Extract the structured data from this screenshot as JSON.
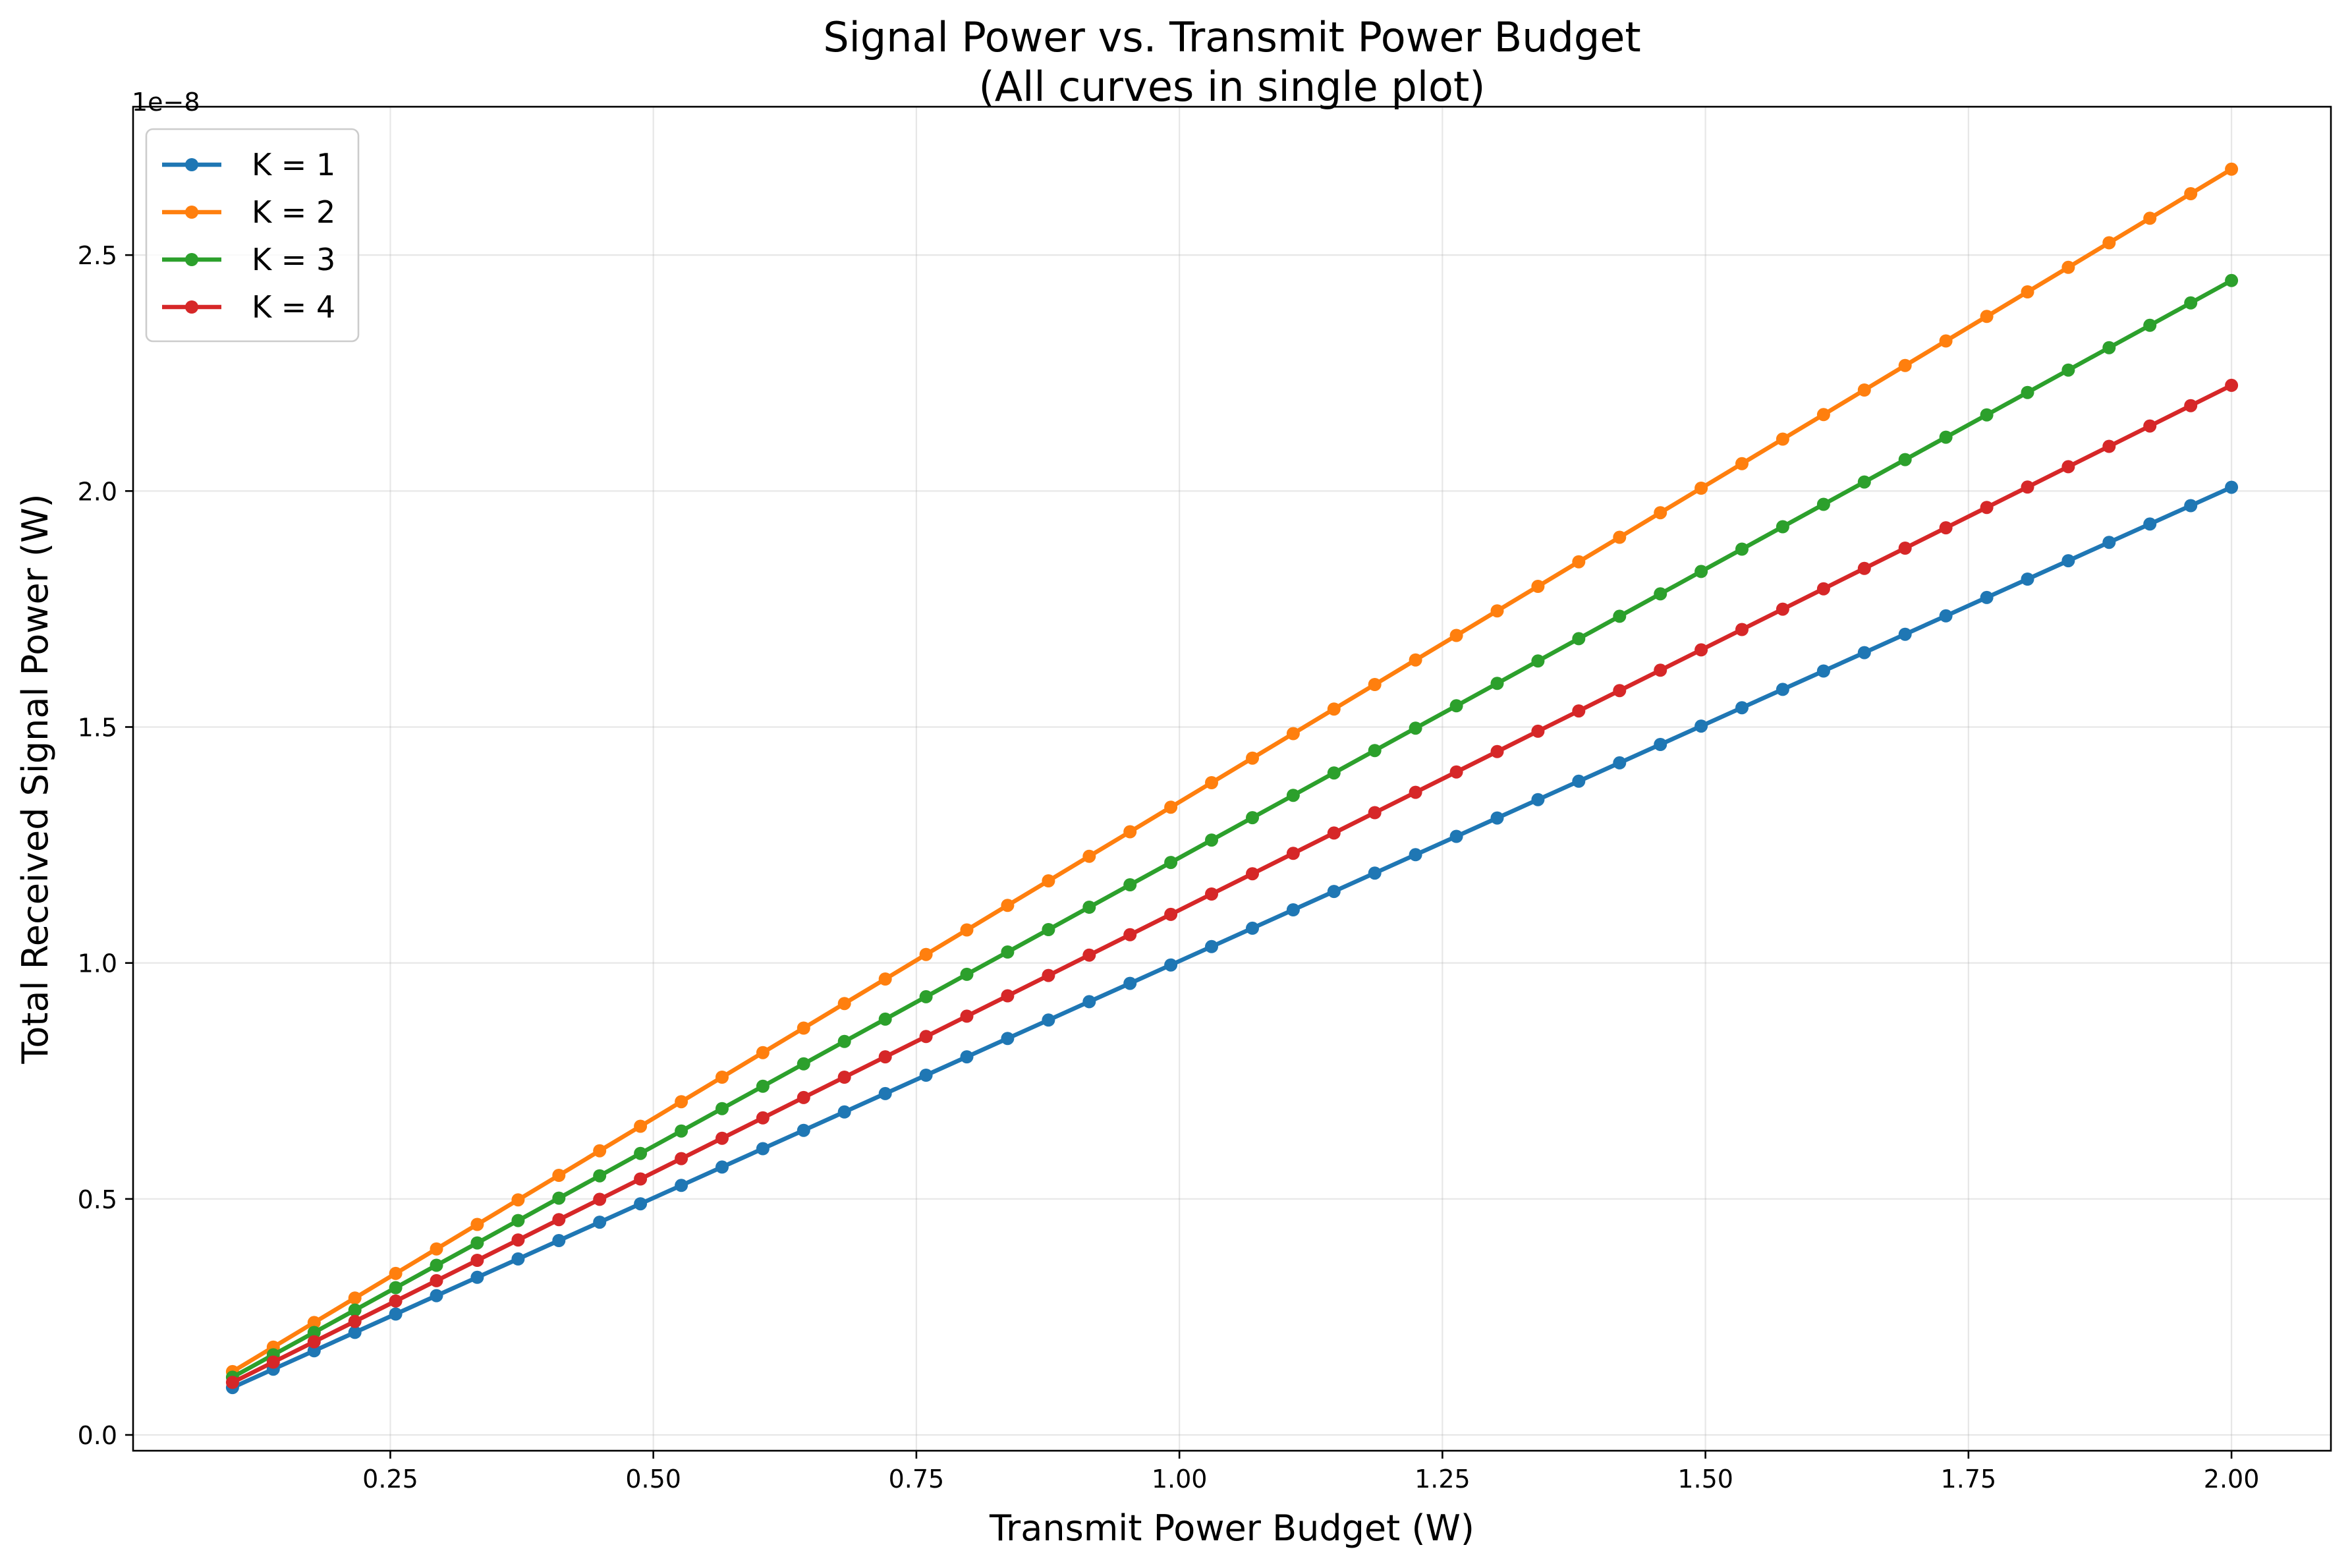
{
  "chart_data": {
    "type": "line",
    "title": "Signal Power vs. Transmit Power Budget",
    "subtitle": "(All curves in single plot)",
    "xlabel": "Transmit Power Budget (W)",
    "ylabel": "Total Received Signal Power (W)",
    "y_offset_label": "1e−8",
    "xlim": [
      0.0055,
      2.0945
    ],
    "ylim": [
      -0.0335,
      2.8143
    ],
    "x_ticks": [
      0.25,
      0.5,
      0.75,
      1.0,
      1.25,
      1.5,
      1.75,
      2.0
    ],
    "x_tick_labels": [
      "0.25",
      "0.50",
      "0.75",
      "1.00",
      "1.25",
      "1.50",
      "1.75",
      "2.00"
    ],
    "y_ticks": [
      0.0,
      0.5,
      1.0,
      1.5,
      2.0,
      2.5
    ],
    "y_tick_labels": [
      "0.0",
      "0.5",
      "1.0",
      "1.5",
      "2.0",
      "2.5"
    ],
    "grid": true,
    "legend_position": "top-left",
    "x": {
      "start": 0.1,
      "end": 2.0,
      "count": 50
    },
    "series": [
      {
        "name": "K = 1",
        "color": "#1f77b4",
        "slope": 1.004,
        "intercept": 0.0
      },
      {
        "name": "K = 2",
        "color": "#ff7f0e",
        "slope": 1.341,
        "intercept": 0.0
      },
      {
        "name": "K = 3",
        "color": "#2ca02c",
        "slope": 1.223,
        "intercept": 0.0
      },
      {
        "name": "K = 4",
        "color": "#d62728",
        "slope": 1.112,
        "intercept": 0.0
      }
    ]
  }
}
